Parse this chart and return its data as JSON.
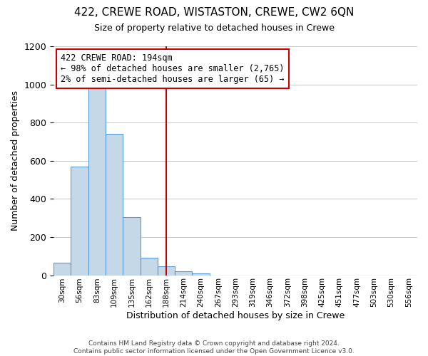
{
  "title": "422, CREWE ROAD, WISTASTON, CREWE, CW2 6QN",
  "subtitle": "Size of property relative to detached houses in Crewe",
  "xlabel": "Distribution of detached houses by size in Crewe",
  "ylabel": "Number of detached properties",
  "bar_values": [
    65,
    570,
    1000,
    740,
    305,
    90,
    45,
    20,
    10,
    0,
    0,
    0,
    0,
    0,
    0,
    0,
    0,
    0,
    0,
    0,
    0
  ],
  "bin_labels": [
    "30sqm",
    "56sqm",
    "83sqm",
    "109sqm",
    "135sqm",
    "162sqm",
    "188sqm",
    "214sqm",
    "240sqm",
    "267sqm",
    "293sqm",
    "319sqm",
    "346sqm",
    "372sqm",
    "398sqm",
    "425sqm",
    "451sqm",
    "477sqm",
    "503sqm",
    "530sqm",
    "556sqm"
  ],
  "bar_color": "#c5d8e8",
  "bar_edge_color": "#5b9bd5",
  "reference_line_x": 6,
  "reference_line_color": "#cc0000",
  "annotation_line1": "422 CREWE ROAD: 194sqm",
  "annotation_line2": "← 98% of detached houses are smaller (2,765)",
  "annotation_line3": "2% of semi-detached houses are larger (65) →",
  "annotation_box_color": "#ffffff",
  "annotation_box_edge_color": "#cc0000",
  "ylim": [
    0,
    1200
  ],
  "yticks": [
    0,
    200,
    400,
    600,
    800,
    1000,
    1200
  ],
  "footer_text": "Contains HM Land Registry data © Crown copyright and database right 2024.\nContains public sector information licensed under the Open Government Licence v3.0.",
  "background_color": "#ffffff",
  "grid_color": "#cccccc"
}
